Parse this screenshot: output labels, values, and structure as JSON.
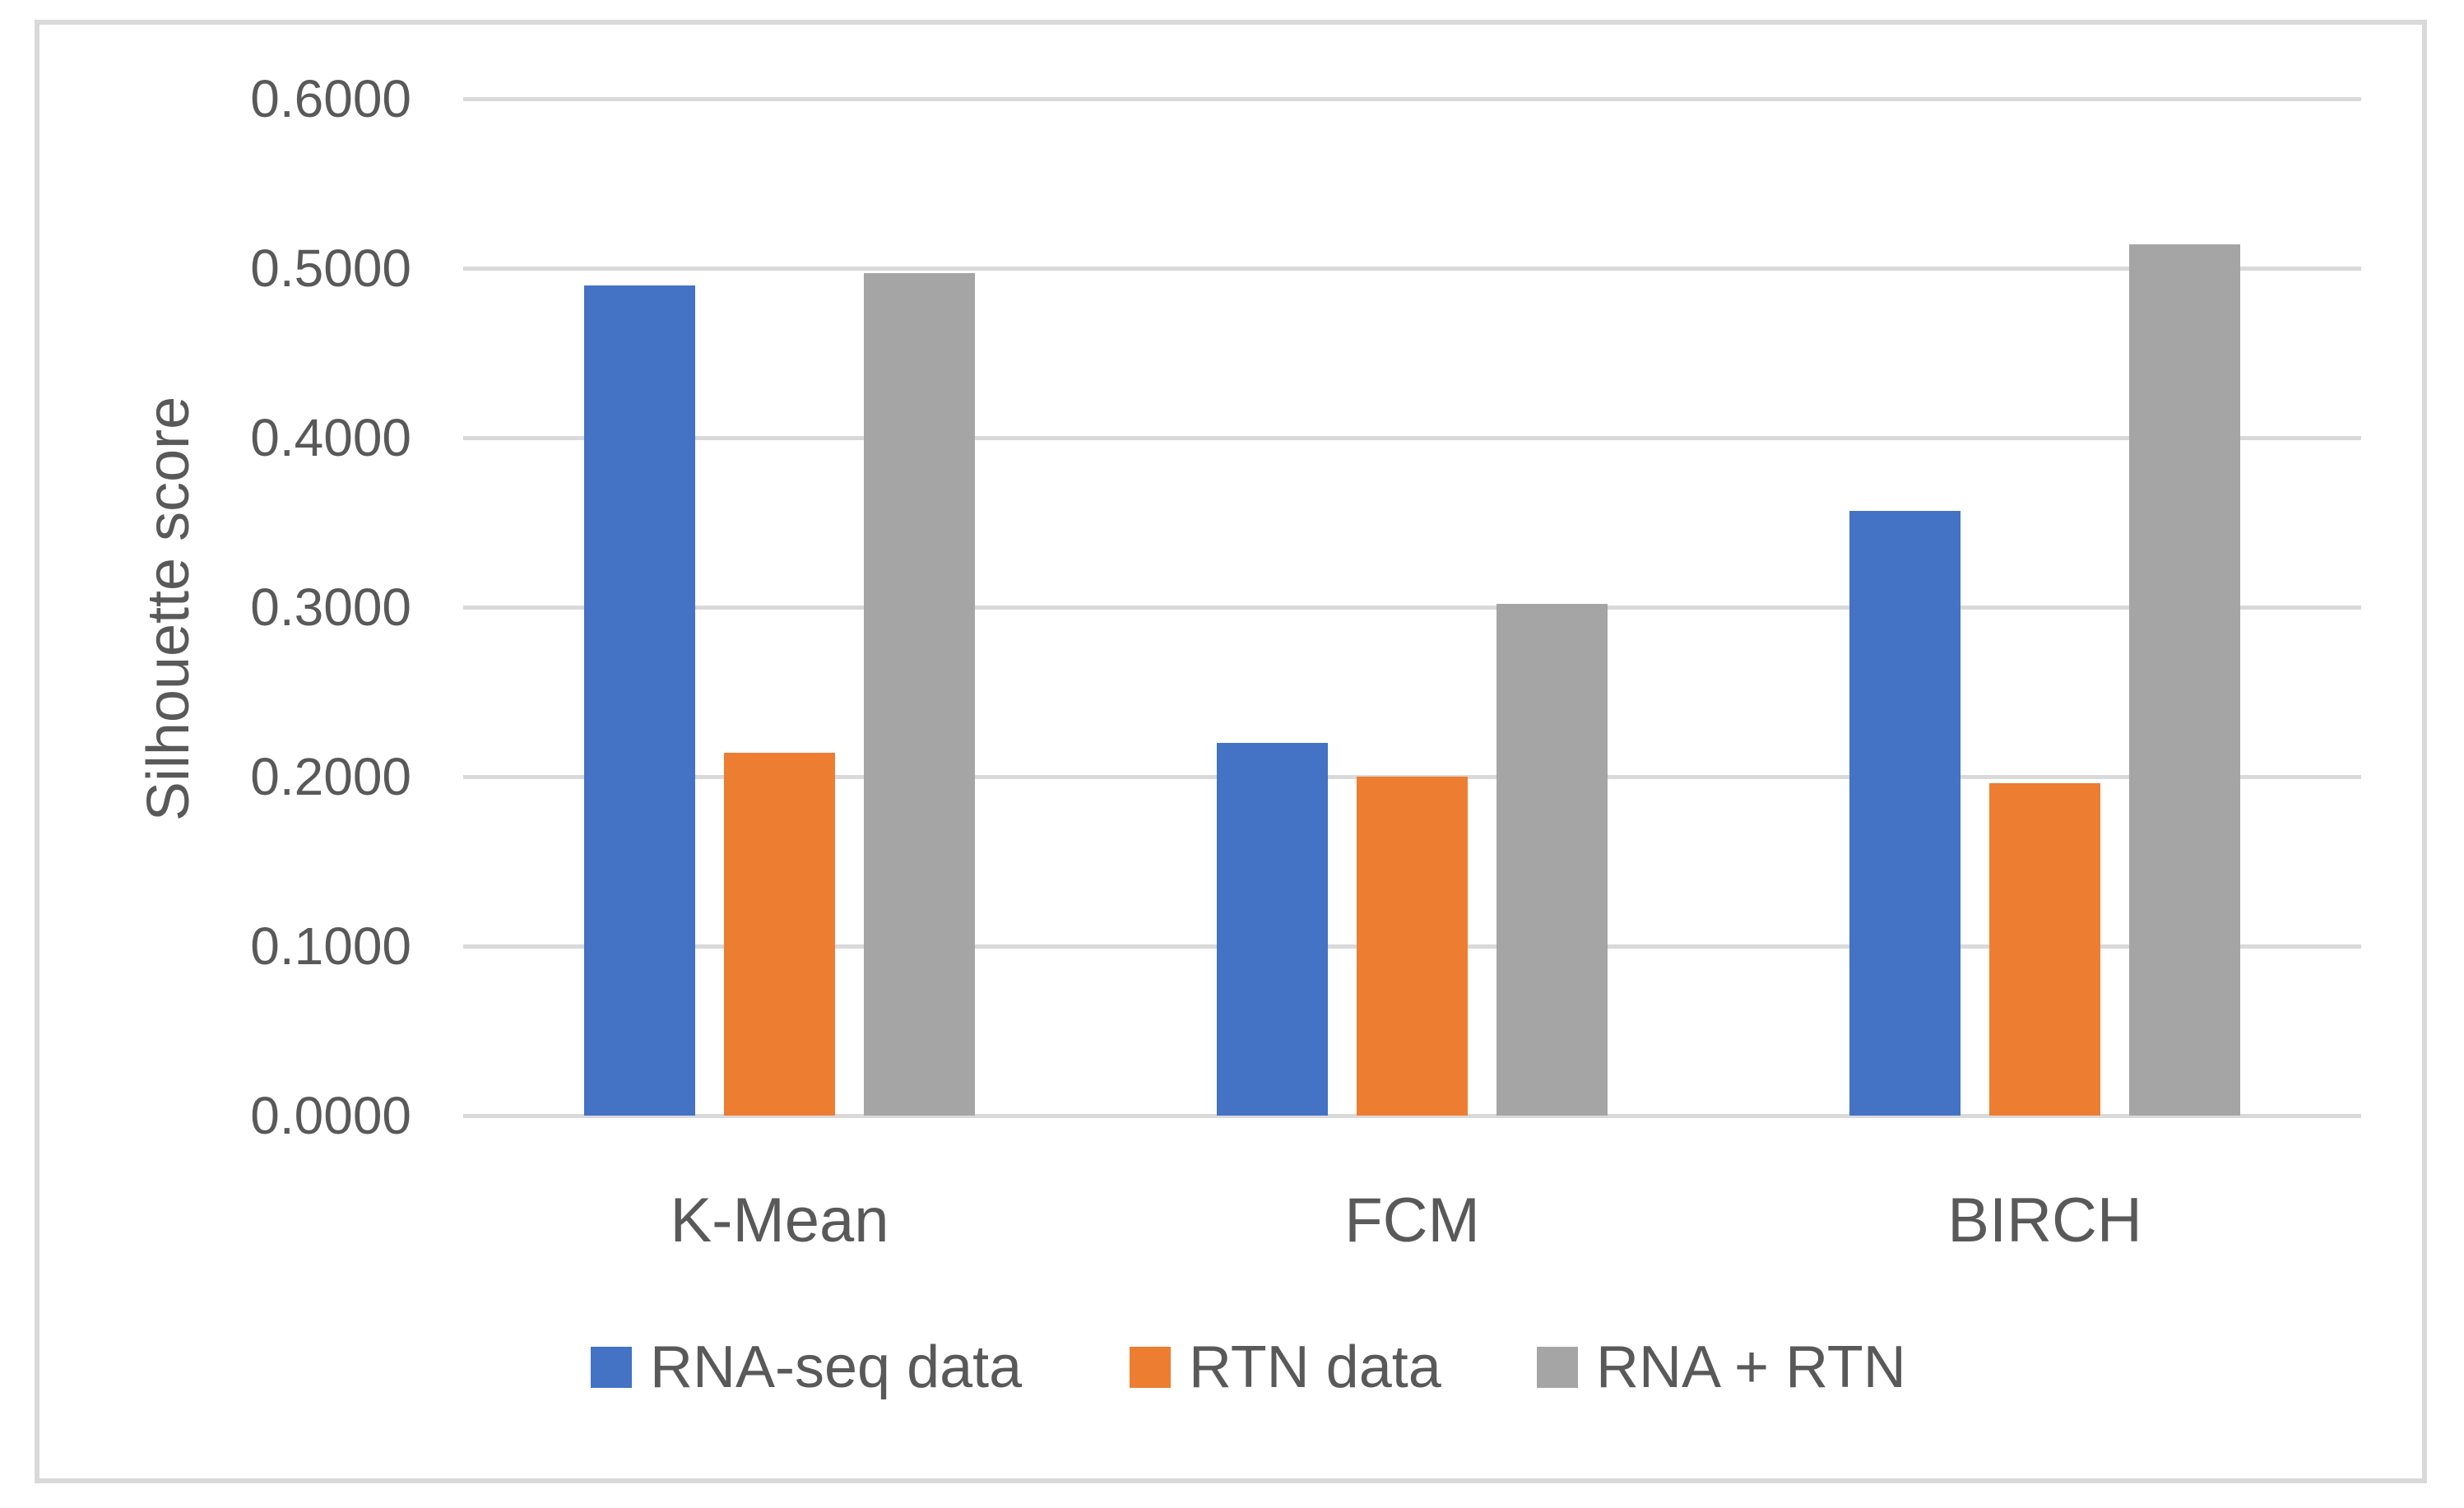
{
  "figure": {
    "border_color": "#d9d9d9",
    "background_color": "#ffffff"
  },
  "chart_data": {
    "type": "bar",
    "title": "",
    "xlabel": "",
    "ylabel": "Silhouette score",
    "categories": [
      "K-Mean",
      "FCM",
      "BIRCH"
    ],
    "series": [
      {
        "name": "RNA-seq data",
        "color": "#4472C4",
        "values": [
          0.49,
          0.22,
          0.357
        ]
      },
      {
        "name": "RTN data",
        "color": "#ED7D31",
        "values": [
          0.214,
          0.2,
          0.196
        ]
      },
      {
        "name": "RNA + RTN",
        "color": "#A5A5A5",
        "values": [
          0.497,
          0.302,
          0.514
        ]
      }
    ],
    "ylim": [
      0,
      0.6
    ],
    "ytick_step": 0.1,
    "ytick_decimals": 4,
    "ytick_labels": [
      "0.0000",
      "0.1000",
      "0.2000",
      "0.3000",
      "0.4000",
      "0.5000",
      "0.6000"
    ],
    "grid": "horizontal",
    "gridline_color": "#d9d9d9",
    "legend_position": "bottom",
    "text_color": "#595959"
  }
}
